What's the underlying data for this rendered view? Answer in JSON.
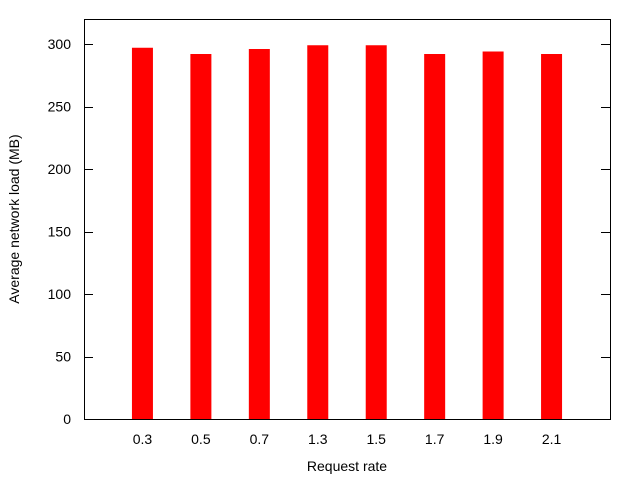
{
  "chart_data": {
    "type": "bar",
    "categories": [
      "0.3",
      "0.5",
      "0.7",
      "1.3",
      "1.5",
      "1.7",
      "1.9",
      "2.1"
    ],
    "values": [
      297,
      292,
      296,
      299,
      299,
      292,
      294,
      292
    ],
    "title": "",
    "xlabel": "Request rate",
    "ylabel": "Average network load (MB)",
    "ylim": [
      0,
      320
    ],
    "yticks": [
      0,
      50,
      100,
      150,
      200,
      250,
      300
    ],
    "grid": false,
    "legend": "none",
    "colors": {
      "bar": "#ff0000",
      "axis": "#000000"
    }
  }
}
